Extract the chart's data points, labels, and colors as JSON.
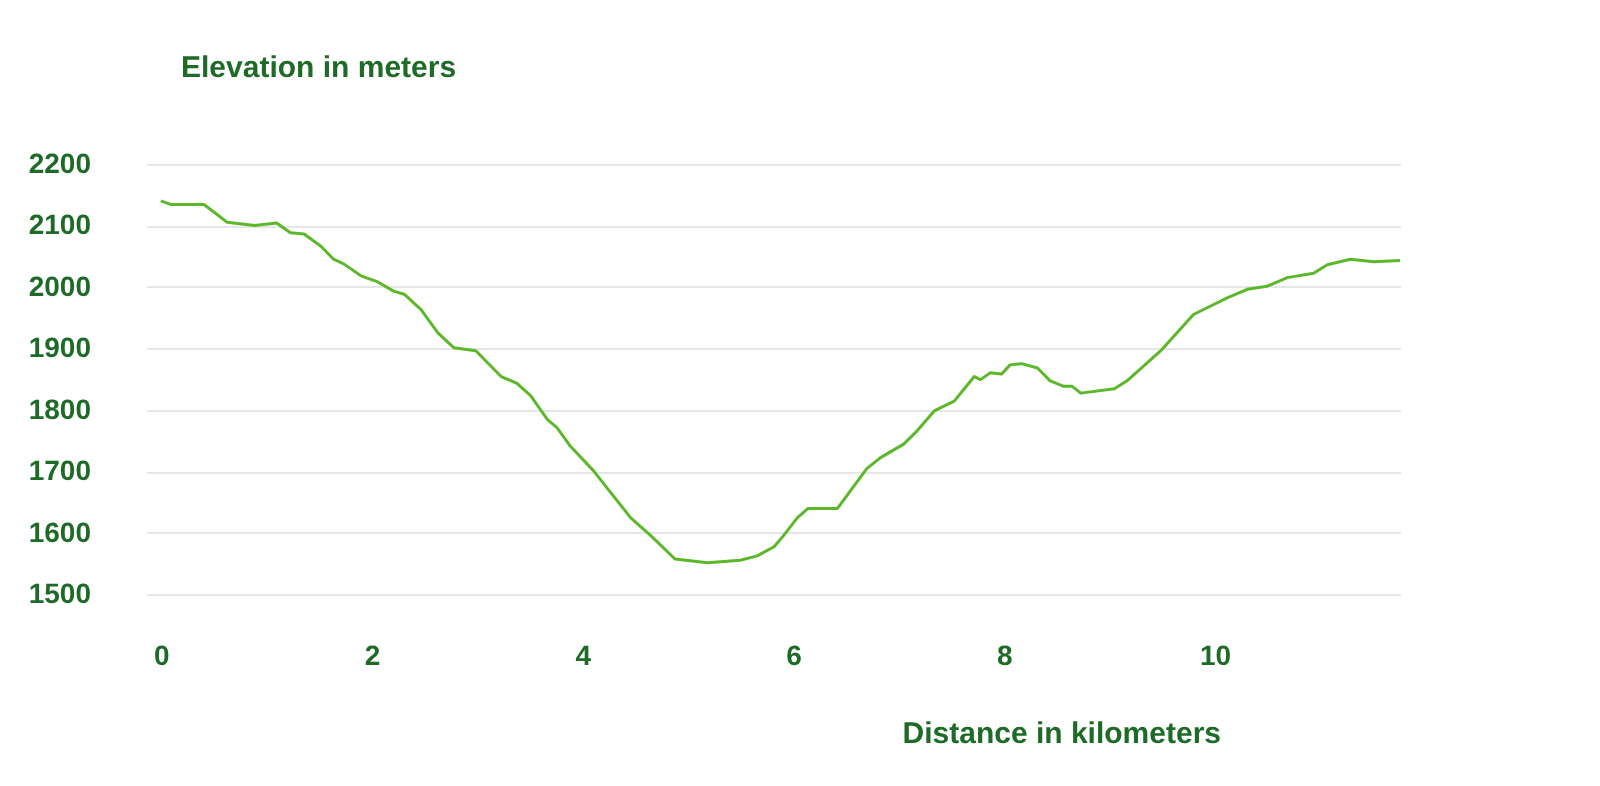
{
  "chart_data": {
    "type": "line",
    "xlabel": "Distance in kilometers",
    "ylabel": "Elevation in meters",
    "x": [
      0,
      0.1,
      0.41,
      0.51,
      0.63,
      0.89,
      1.1,
      1.23,
      1.36,
      1.52,
      1.64,
      1.74,
      1.9,
      2.06,
      2.21,
      2.31,
      2.47,
      2.63,
      2.78,
      2.99,
      3.23,
      3.38,
      3.51,
      3.67,
      3.76,
      3.89,
      4.11,
      4.21,
      4.46,
      4.65,
      4.88,
      5.19,
      5.5,
      5.66,
      5.82,
      5.91,
      6.04,
      6.14,
      6.42,
      6.7,
      6.83,
      7.05,
      7.18,
      7.34,
      7.53,
      7.72,
      7.78,
      7.87,
      7.98,
      8.06,
      8.17,
      8.32,
      8.44,
      8.57,
      8.65,
      8.73,
      9.05,
      9.17,
      9.49,
      9.8,
      9.93,
      10.12,
      10.31,
      10.5,
      10.69,
      10.94,
      11.07,
      11.29,
      11.51,
      11.76
    ],
    "series": [
      {
        "color": "#5cb82a",
        "values": [
          2140,
          2134,
          2134,
          2121,
          2105,
          2100,
          2104,
          2088,
          2086,
          2066,
          2045,
          2037,
          2018,
          2008,
          1993,
          1988,
          1963,
          1925,
          1901,
          1896,
          1854,
          1843,
          1823,
          1784,
          1771,
          1740,
          1700,
          1678,
          1624,
          1595,
          1557,
          1551,
          1555,
          1562,
          1577,
          1595,
          1624,
          1639,
          1639,
          1704,
          1722,
          1744,
          1766,
          1798,
          1814,
          1854,
          1849,
          1860,
          1858,
          1873,
          1875,
          1868,
          1847,
          1838,
          1838,
          1827,
          1834,
          1847,
          1896,
          1955,
          1966,
          1982,
          1996,
          2001,
          2015,
          2022,
          2036,
          2045,
          2041,
          2043
        ]
      }
    ],
    "xlim": [
      -0.14,
      11.76
    ],
    "xticks": [
      0,
      2,
      4,
      6,
      8,
      10
    ],
    "ylim": [
      1500,
      2200
    ],
    "yticks": [
      1500,
      1600,
      1700,
      1800,
      1900,
      2000,
      2100,
      2200
    ],
    "grid": "y",
    "marker": "none",
    "line_style": "solid"
  }
}
